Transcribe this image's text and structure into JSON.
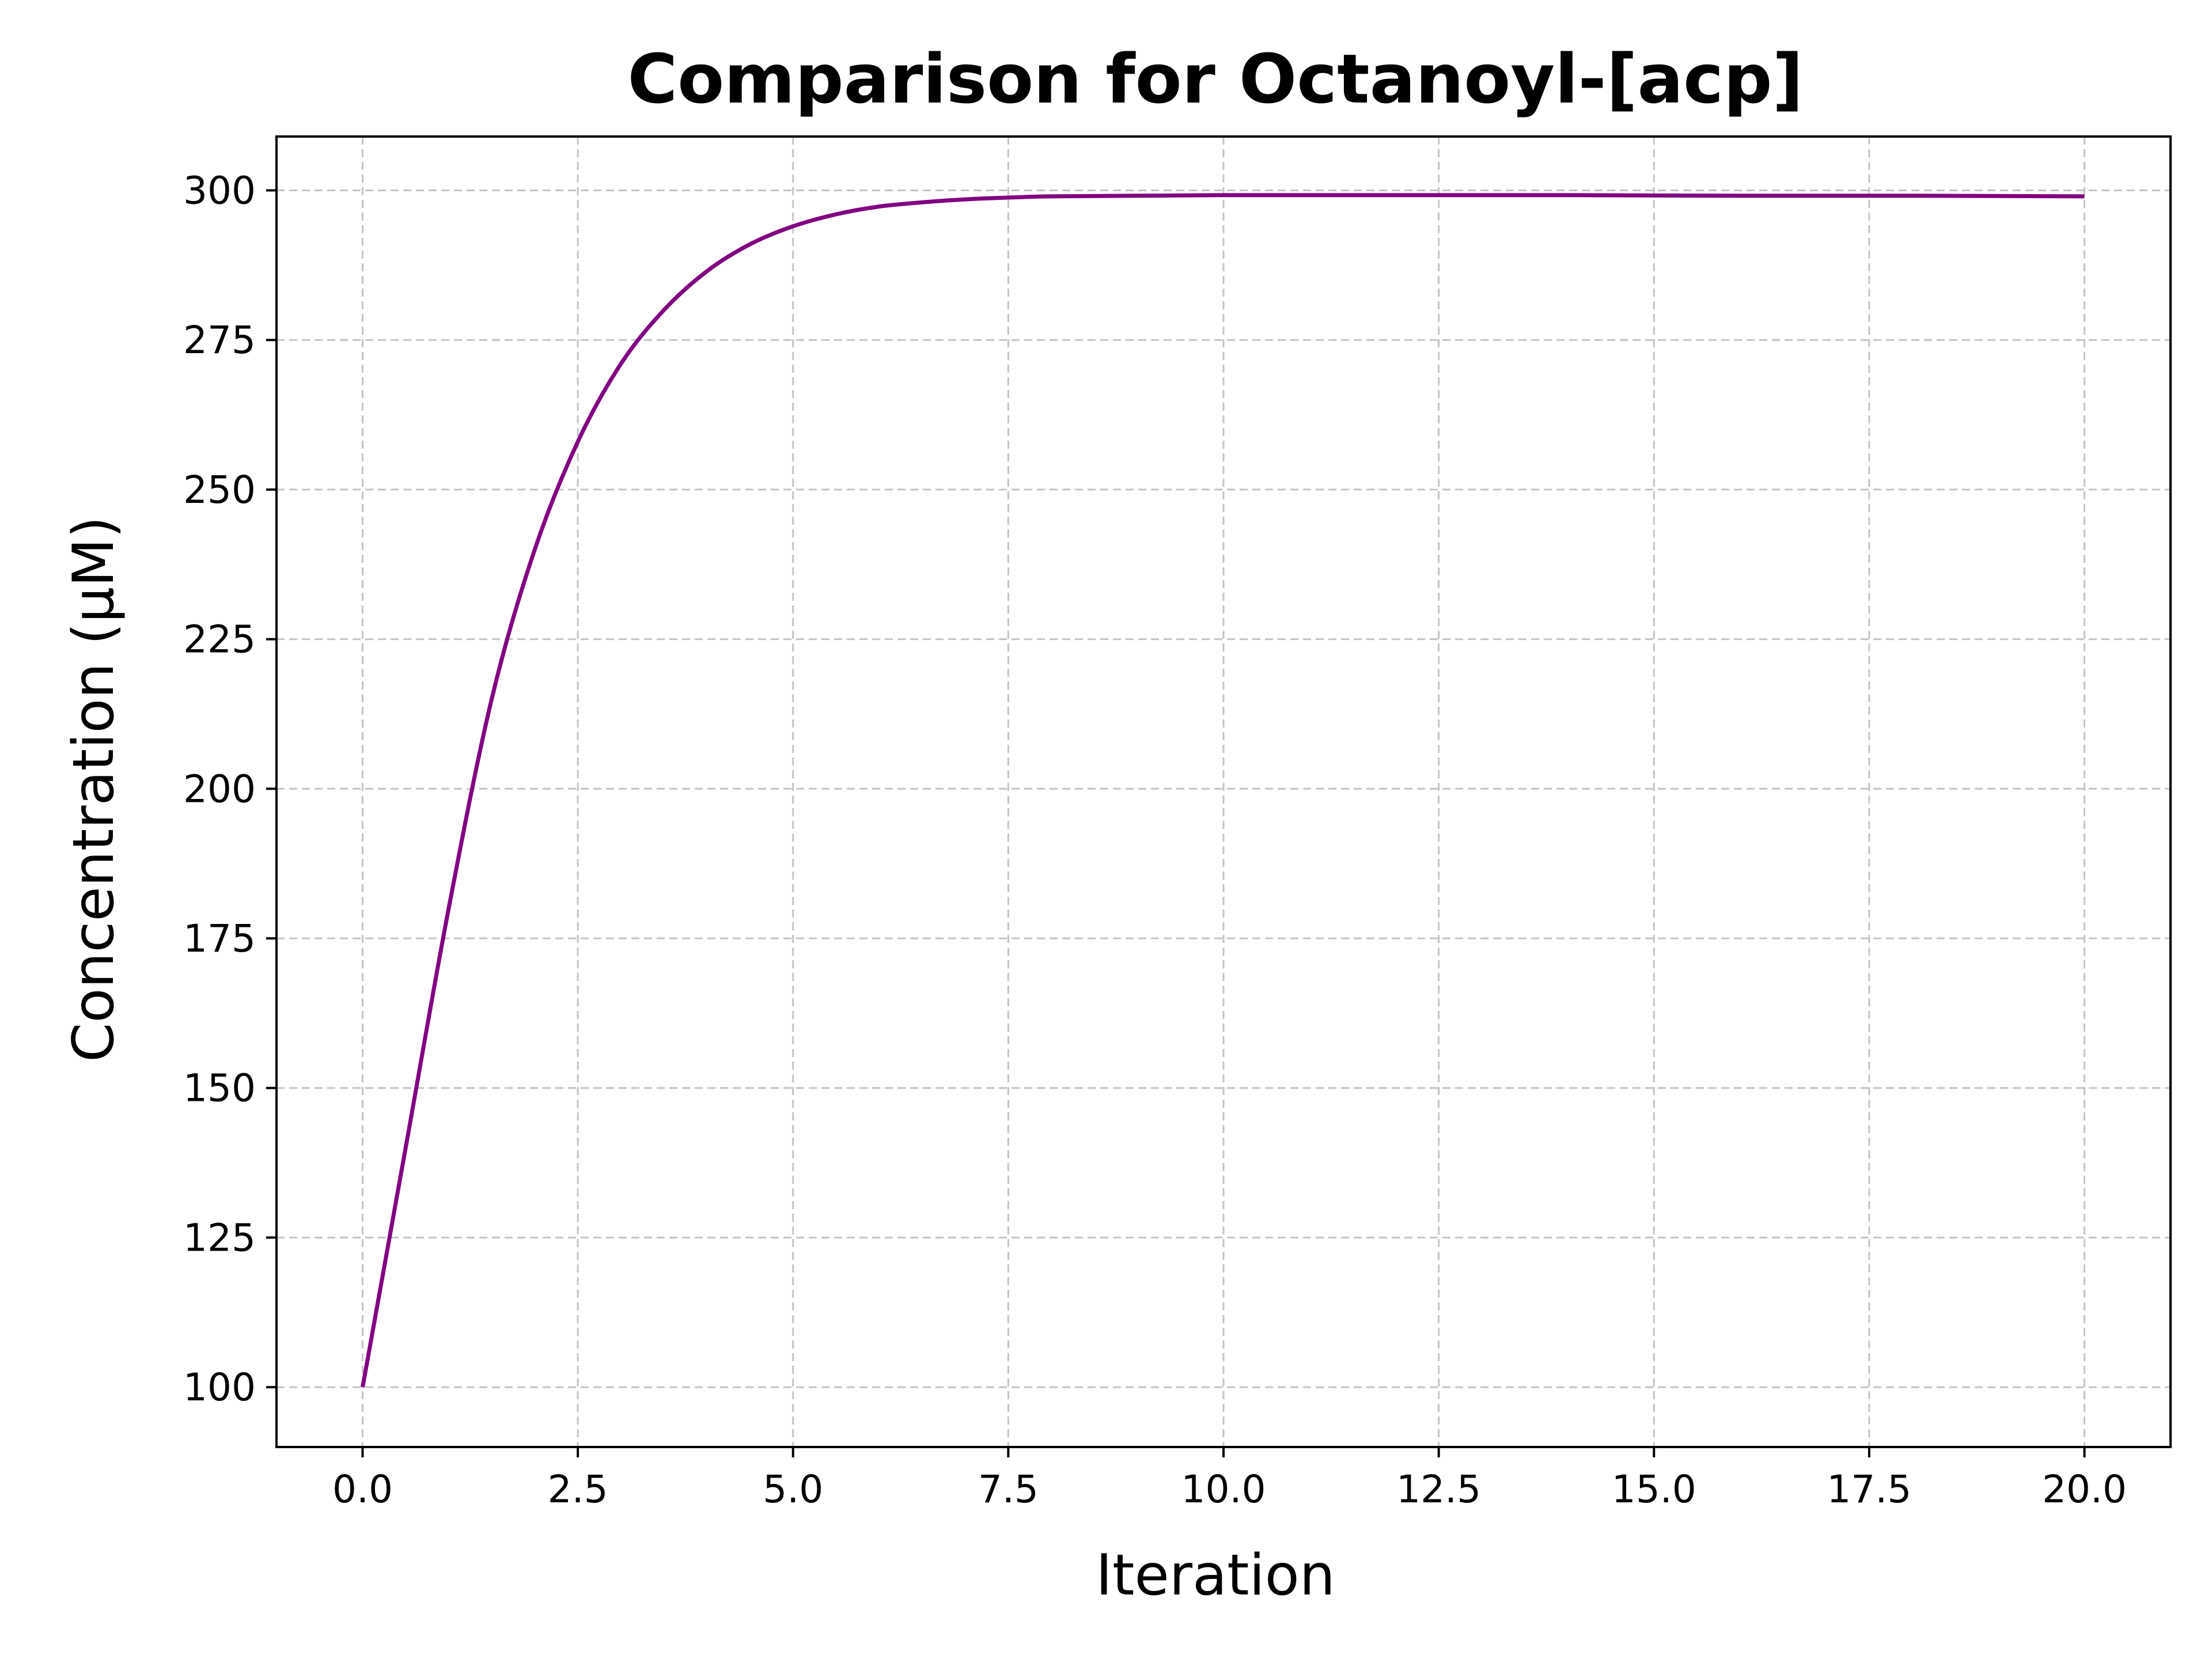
{
  "chart_data": {
    "type": "line",
    "title": "Comparison for Octanoyl-[acp]",
    "xlabel": "Iteration",
    "ylabel": "Concentration (μM)",
    "xlim": [
      -1,
      21
    ],
    "ylim": [
      90,
      309
    ],
    "xticks": [
      0,
      2.5,
      5,
      7.5,
      10,
      12.5,
      15,
      17.5,
      20
    ],
    "xtick_labels": [
      "0.0",
      "2.5",
      "5.0",
      "7.5",
      "10.0",
      "12.5",
      "15.0",
      "17.5",
      "20.0"
    ],
    "yticks": [
      100,
      125,
      150,
      175,
      200,
      225,
      250,
      275,
      300
    ],
    "ytick_labels": [
      "100",
      "125",
      "150",
      "175",
      "200",
      "225",
      "250",
      "275",
      "300"
    ],
    "grid": true,
    "series": [
      {
        "color": "#800080",
        "x": [
          0,
          0.5,
          1,
          1.5,
          2,
          2.5,
          3,
          3.5,
          4,
          4.5,
          5,
          5.5,
          6,
          6.5,
          7,
          7.5,
          8,
          9,
          10,
          12,
          14,
          16,
          18,
          20
        ],
        "y": [
          100,
          140,
          180,
          215,
          240,
          258,
          271,
          280,
          286.5,
          291,
          294,
          296,
          297.3,
          298,
          298.5,
          298.8,
          299,
          299.1,
          299.2,
          299.2,
          299.2,
          299.1,
          299.1,
          299
        ]
      }
    ]
  }
}
